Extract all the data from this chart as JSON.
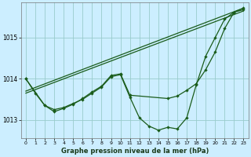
{
  "title": "Graphe pression niveau de la mer (hPa)",
  "bg_color": "#cceeff",
  "grid_color": "#99cccc",
  "line_color": "#1a5c1a",
  "xlim": [
    -0.5,
    23.5
  ],
  "ylim": [
    1012.55,
    1015.85
  ],
  "yticks": [
    1013,
    1014,
    1015
  ],
  "xticks": [
    0,
    1,
    2,
    3,
    4,
    5,
    6,
    7,
    8,
    9,
    10,
    11,
    12,
    13,
    14,
    15,
    16,
    17,
    18,
    19,
    20,
    21,
    22,
    23
  ],
  "series_trend1": {
    "x": [
      0,
      23
    ],
    "y": [
      1013.65,
      1015.65
    ]
  },
  "series_trend2": {
    "x": [
      0,
      23
    ],
    "y": [
      1013.7,
      1015.72
    ]
  },
  "series_marked1": {
    "x": [
      0,
      1,
      2,
      3,
      4,
      5,
      6,
      7,
      8,
      9,
      10,
      11,
      12,
      13,
      14,
      15,
      16,
      17,
      18,
      19,
      20,
      21,
      22,
      23
    ],
    "y": [
      1014.0,
      1013.65,
      1013.35,
      1013.25,
      1013.3,
      1013.4,
      1013.5,
      1013.65,
      1013.8,
      1014.05,
      1014.1,
      1013.55,
      1013.05,
      1012.85,
      1012.75,
      1012.82,
      1012.78,
      1013.05,
      1013.85,
      1014.55,
      1015.0,
      1015.45,
      1015.62,
      1015.72
    ]
  },
  "series_marked2": {
    "x": [
      0,
      2,
      3,
      4,
      5,
      6,
      7,
      8,
      9,
      10,
      11,
      15,
      16,
      17,
      18,
      19,
      20,
      21,
      22,
      23
    ],
    "y": [
      1014.0,
      1013.35,
      1013.2,
      1013.28,
      1013.38,
      1013.52,
      1013.68,
      1013.82,
      1014.08,
      1014.12,
      1013.6,
      1013.52,
      1013.58,
      1013.72,
      1013.88,
      1014.22,
      1014.65,
      1015.22,
      1015.62,
      1015.68
    ]
  }
}
